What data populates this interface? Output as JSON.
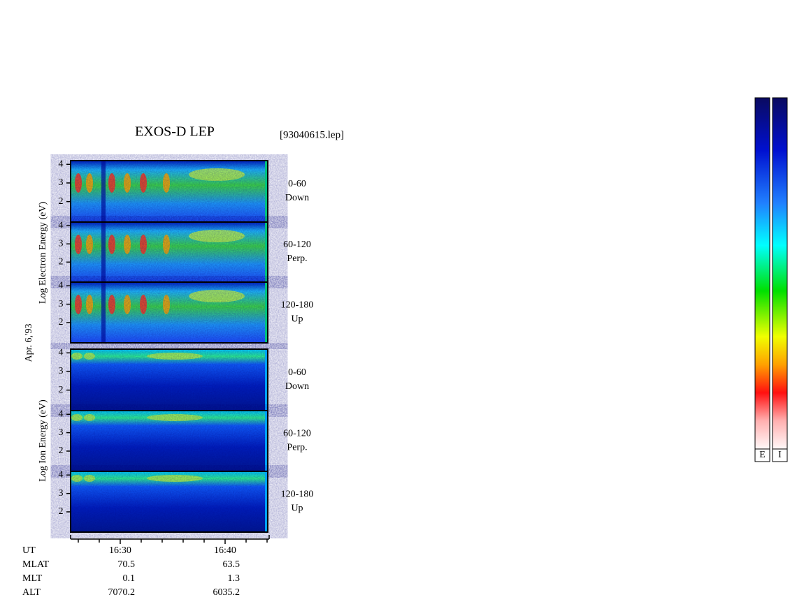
{
  "title": "EXOS-D LEP",
  "file": "[93040615.lep]",
  "date": "Apr. 6,'93",
  "electron_label": "Log Electron Energy (eV)",
  "ion_label": "Log Ion Energy (eV)",
  "panels": [
    {
      "species": "electron",
      "range": "0-60",
      "direction": "Down"
    },
    {
      "species": "electron",
      "range": "60-120",
      "direction": "Perp."
    },
    {
      "species": "electron",
      "range": "120-180",
      "direction": "Up"
    },
    {
      "species": "ion",
      "range": "0-60",
      "direction": "Down"
    },
    {
      "species": "ion",
      "range": "60-120",
      "direction": "Perp."
    },
    {
      "species": "ion",
      "range": "120-180",
      "direction": "Up"
    }
  ],
  "ylim": [
    0.9,
    4.2
  ],
  "yticks": [
    2,
    3,
    4
  ],
  "xlim": [
    985.27,
    1004.2
  ],
  "xticks": [
    {
      "value": 990,
      "label": "16:30"
    },
    {
      "value": 1000,
      "label": "16:40"
    }
  ],
  "xminor": [
    986,
    988,
    992,
    994,
    996,
    998,
    1002,
    1004
  ],
  "ephemeris": [
    {
      "label": "UT"
    },
    {
      "label": "MLAT",
      "values": [
        "70.5",
        "63.5"
      ]
    },
    {
      "label": "MLT",
      "values": [
        "0.1",
        "1.3"
      ]
    },
    {
      "label": "ALT",
      "values": [
        "7070.2",
        "6035.2"
      ]
    }
  ],
  "colorbar_labels": [
    "E",
    "I"
  ]
}
